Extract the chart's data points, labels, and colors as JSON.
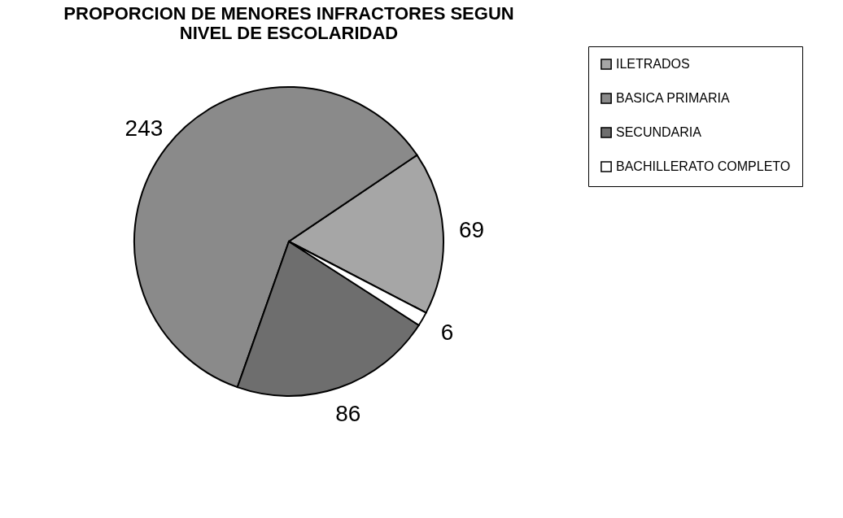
{
  "chart_data": {
    "type": "pie",
    "title": "PROPORCION DE MENORES INFRACTORES SEGUN NIVEL DE ESCOLARIDAD",
    "categories": [
      "ILETRADOS",
      "BASICA PRIMARIA",
      "SECUNDARIA",
      "BACHILLERATO COMPLETO"
    ],
    "values": [
      69,
      243,
      86,
      6
    ],
    "colors": [
      "#a6a6a6",
      "#8a8a8a",
      "#6e6e6e",
      "#ffffff"
    ],
    "data_labels": true,
    "legend": "right"
  }
}
